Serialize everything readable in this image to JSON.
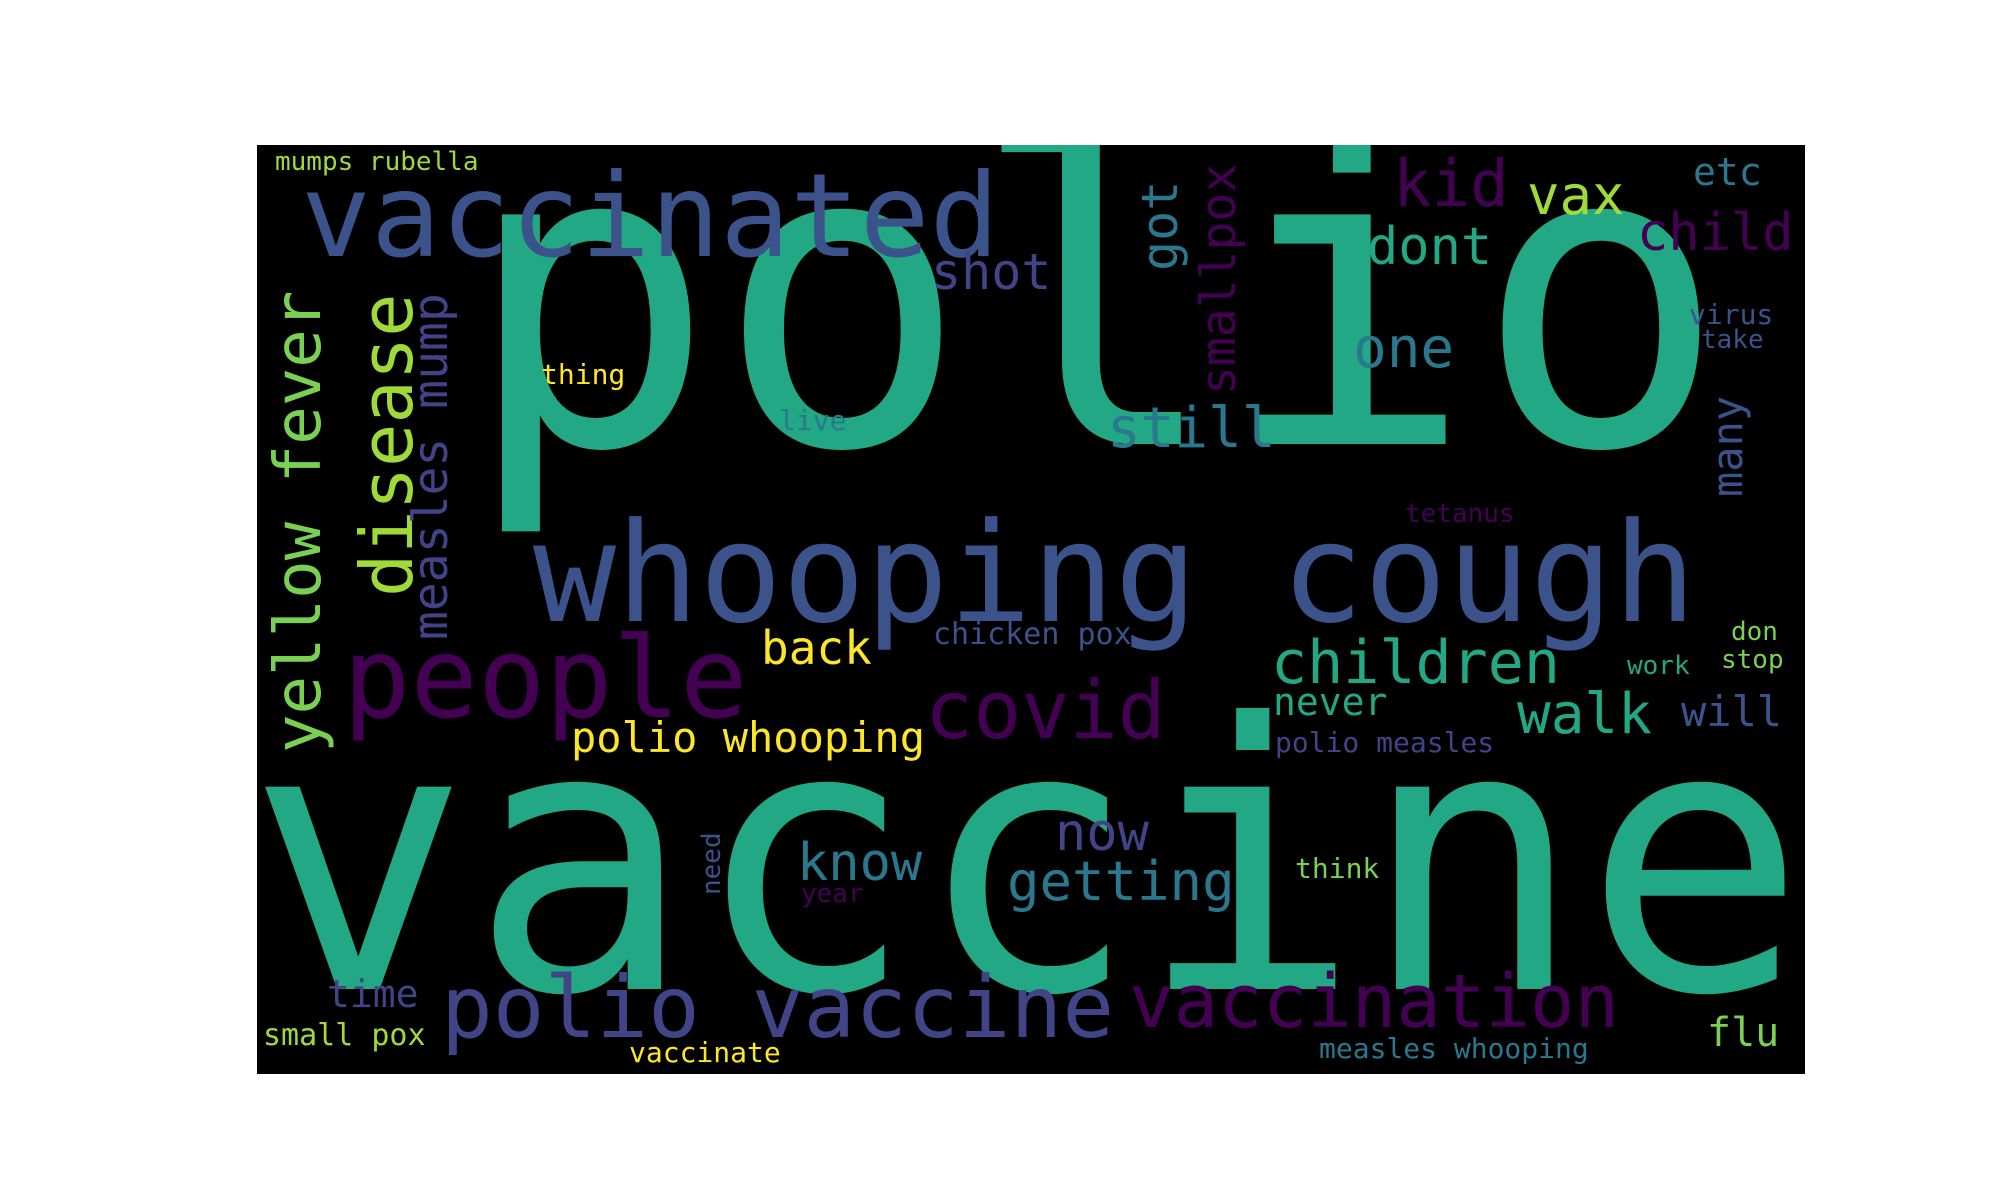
{
  "background_color": "#000000",
  "palette": {
    "green": "#22a884",
    "blue": "#3b528b",
    "purple": "#440154",
    "teal": "#2a788e",
    "yellow_green": "#a0da39",
    "yellow": "#fde725",
    "lime": "#7ad151",
    "violet": "#414487"
  },
  "words": [
    {
      "text": "polio",
      "color": "#22a884"
    },
    {
      "text": "vaccine",
      "color": "#22a884"
    },
    {
      "text": "whooping cough",
      "color": "#3b528b"
    },
    {
      "text": "vaccinated",
      "color": "#3b528b"
    },
    {
      "text": "people",
      "color": "#440154"
    },
    {
      "text": "polio vaccine",
      "color": "#414487"
    },
    {
      "text": "vaccination",
      "color": "#440154"
    },
    {
      "text": "covid",
      "color": "#440154"
    },
    {
      "text": "disease",
      "color": "#a0da39"
    },
    {
      "text": "yellow fever",
      "color": "#7ad151"
    },
    {
      "text": "children",
      "color": "#22a884"
    },
    {
      "text": "walk",
      "color": "#22a884"
    },
    {
      "text": "measles mump",
      "color": "#414487"
    },
    {
      "text": "kid",
      "color": "#440154"
    },
    {
      "text": "child",
      "color": "#440154"
    },
    {
      "text": "still",
      "color": "#2a788e"
    },
    {
      "text": "getting",
      "color": "#2a788e"
    },
    {
      "text": "dont",
      "color": "#22a884"
    },
    {
      "text": "one",
      "color": "#2a788e"
    },
    {
      "text": "vax",
      "color": "#a0da39"
    },
    {
      "text": "smallpox",
      "color": "#440154"
    },
    {
      "text": "shot",
      "color": "#414487"
    },
    {
      "text": "know",
      "color": "#2a788e"
    },
    {
      "text": "now",
      "color": "#414487"
    },
    {
      "text": "got",
      "color": "#2a788e"
    },
    {
      "text": "polio whooping",
      "color": "#fde725"
    },
    {
      "text": "back",
      "color": "#fde725"
    },
    {
      "text": "never",
      "color": "#22a884"
    },
    {
      "text": "many",
      "color": "#3b528b"
    },
    {
      "text": "will",
      "color": "#3b528b"
    },
    {
      "text": "etc",
      "color": "#2a788e"
    },
    {
      "text": "time",
      "color": "#414487"
    },
    {
      "text": "flu",
      "color": "#7ad151"
    },
    {
      "text": "small pox",
      "color": "#a0da39"
    },
    {
      "text": "polio measles",
      "color": "#414487"
    },
    {
      "text": "chicken pox",
      "color": "#3b528b"
    },
    {
      "text": "measles whooping",
      "color": "#2a788e"
    },
    {
      "text": "vaccinate",
      "color": "#fde725"
    },
    {
      "text": "mumps rubella",
      "color": "#a0da39"
    },
    {
      "text": "thing",
      "color": "#fde725"
    },
    {
      "text": "live",
      "color": "#2a788e"
    },
    {
      "text": "virus",
      "color": "#3b528b"
    },
    {
      "text": "take",
      "color": "#3b528b"
    },
    {
      "text": "think",
      "color": "#7ad151"
    },
    {
      "text": "tetanus",
      "color": "#440154"
    },
    {
      "text": "need",
      "color": "#3b528b"
    },
    {
      "text": "year",
      "color": "#440154"
    },
    {
      "text": "work",
      "color": "#22a884"
    },
    {
      "text": "don",
      "color": "#7ad151"
    },
    {
      "text": "stop",
      "color": "#7ad151"
    }
  ]
}
